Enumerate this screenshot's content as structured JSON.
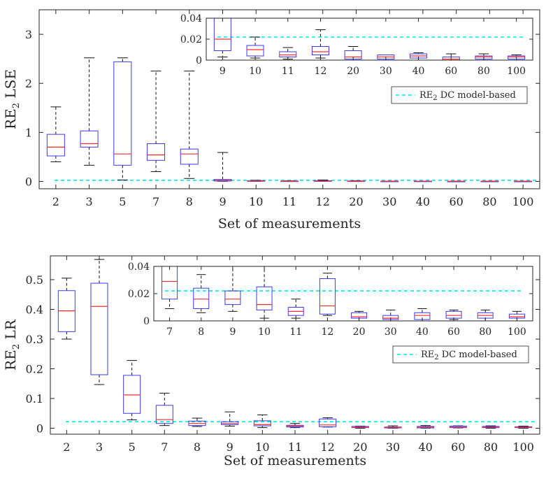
{
  "chart_data": [
    {
      "type": "box",
      "xlabel": "Set of measurements",
      "ylabel": "RE2 LSE",
      "ylim": [
        -0.15,
        3.5
      ],
      "yticks": [
        0,
        1,
        2,
        3
      ],
      "categories": [
        "2",
        "3",
        "5",
        "7",
        "8",
        "9",
        "10",
        "11",
        "12",
        "20",
        "30",
        "40",
        "60",
        "80",
        "100"
      ],
      "boxes": [
        {
          "lo": 0.4,
          "q1": 0.52,
          "med": 0.7,
          "q3": 0.96,
          "hi": 1.52
        },
        {
          "lo": 0.33,
          "q1": 0.7,
          "med": 0.77,
          "q3": 1.03,
          "hi": 2.52
        },
        {
          "lo": 0.03,
          "q1": 0.33,
          "med": 0.56,
          "q3": 2.44,
          "hi": 2.52
        },
        {
          "lo": 0.2,
          "q1": 0.43,
          "med": 0.54,
          "q3": 0.77,
          "hi": 2.25
        },
        {
          "lo": 0.06,
          "q1": 0.35,
          "med": 0.56,
          "q3": 0.66,
          "hi": 2.25
        },
        {
          "lo": 0.003,
          "q1": 0.009,
          "med": 0.02,
          "q3": 0.04,
          "hi": 0.59
        },
        {
          "lo": 0.002,
          "q1": 0.004,
          "med": 0.01,
          "q3": 0.014,
          "hi": 0.022
        },
        {
          "lo": 0.001,
          "q1": 0.003,
          "med": 0.005,
          "q3": 0.008,
          "hi": 0.012
        },
        {
          "lo": 0.002,
          "q1": 0.005,
          "med": 0.008,
          "q3": 0.013,
          "hi": 0.029
        },
        {
          "lo": 0.0,
          "q1": 0.001,
          "med": 0.003,
          "q3": 0.009,
          "hi": 0.013
        },
        {
          "lo": 0.0,
          "q1": 0.001,
          "med": 0.003,
          "q3": 0.005,
          "hi": 0.005
        },
        {
          "lo": 0.0,
          "q1": 0.002,
          "med": 0.004,
          "q3": 0.006,
          "hi": 0.007
        },
        {
          "lo": 0.0,
          "q1": 0.0,
          "med": 0.001,
          "q3": 0.003,
          "hi": 0.006
        },
        {
          "lo": 0.0,
          "q1": 0.001,
          "med": 0.003,
          "q3": 0.004,
          "hi": 0.006
        },
        {
          "lo": 0.0,
          "q1": 0.001,
          "med": 0.003,
          "q3": 0.004,
          "hi": 0.005
        }
      ],
      "reference": {
        "label": "RE2 DC model-based",
        "value": 0.022
      },
      "inset": {
        "ylim": [
          0,
          0.04
        ],
        "yticks": [
          "0",
          "0.02",
          "0.04"
        ],
        "categories": [
          "9",
          "10",
          "11",
          "12",
          "20",
          "30",
          "40",
          "60",
          "80",
          "100"
        ]
      }
    },
    {
      "type": "box",
      "xlabel": "Set of measurements",
      "ylabel": "RE2 LR",
      "ylim": [
        -0.02,
        0.58
      ],
      "yticks": [
        "0",
        "0.1",
        "0.2",
        "0.3",
        "0.4",
        "0.5"
      ],
      "categories": [
        "2",
        "3",
        "5",
        "7",
        "8",
        "9",
        "10",
        "11",
        "12",
        "20",
        "30",
        "40",
        "60",
        "80",
        "100"
      ],
      "boxes": [
        {
          "lo": 0.3,
          "q1": 0.325,
          "med": 0.395,
          "q3": 0.463,
          "hi": 0.505
        },
        {
          "lo": 0.147,
          "q1": 0.18,
          "med": 0.41,
          "q3": 0.488,
          "hi": 0.568
        },
        {
          "lo": 0.028,
          "q1": 0.05,
          "med": 0.112,
          "q3": 0.178,
          "hi": 0.228
        },
        {
          "lo": 0.009,
          "q1": 0.016,
          "med": 0.029,
          "q3": 0.077,
          "hi": 0.118
        },
        {
          "lo": 0.006,
          "q1": 0.009,
          "med": 0.016,
          "q3": 0.024,
          "hi": 0.034
        },
        {
          "lo": 0.007,
          "q1": 0.012,
          "med": 0.016,
          "q3": 0.022,
          "hi": 0.055
        },
        {
          "lo": 0.002,
          "q1": 0.008,
          "med": 0.012,
          "q3": 0.025,
          "hi": 0.045
        },
        {
          "lo": 0.002,
          "q1": 0.004,
          "med": 0.007,
          "q3": 0.01,
          "hi": 0.016
        },
        {
          "lo": 0.004,
          "q1": 0.005,
          "med": 0.011,
          "q3": 0.031,
          "hi": 0.035
        },
        {
          "lo": 0.0,
          "q1": 0.002,
          "med": 0.003,
          "q3": 0.006,
          "hi": 0.007
        },
        {
          "lo": 0.0,
          "q1": 0.001,
          "med": 0.002,
          "q3": 0.004,
          "hi": 0.008
        },
        {
          "lo": 0.0,
          "q1": 0.001,
          "med": 0.004,
          "q3": 0.006,
          "hi": 0.009
        },
        {
          "lo": 0.001,
          "q1": 0.002,
          "med": 0.004,
          "q3": 0.007,
          "hi": 0.008
        },
        {
          "lo": 0.0,
          "q1": 0.002,
          "med": 0.004,
          "q3": 0.006,
          "hi": 0.008
        },
        {
          "lo": 0.0,
          "q1": 0.002,
          "med": 0.003,
          "q3": 0.005,
          "hi": 0.007
        }
      ],
      "reference": {
        "label": "RE2 DC model-based",
        "value": 0.022
      },
      "inset": {
        "ylim": [
          0,
          0.04
        ],
        "yticks": [
          "0",
          "0.02",
          "0.04"
        ],
        "categories": [
          "7",
          "8",
          "9",
          "10",
          "11",
          "12",
          "20",
          "30",
          "40",
          "60",
          "80",
          "100"
        ]
      }
    }
  ]
}
